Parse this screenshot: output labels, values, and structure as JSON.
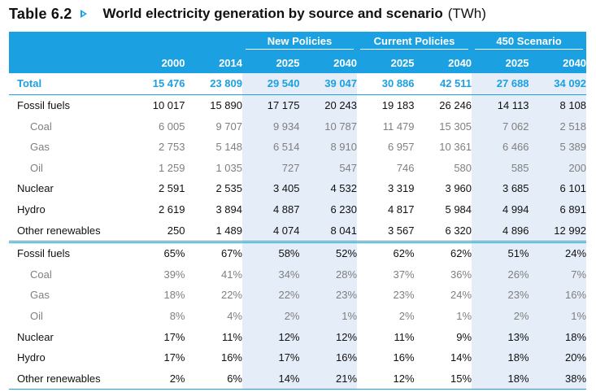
{
  "title": {
    "table_number": "Table 6.2",
    "text": "World electricity generation by source and scenario",
    "unit": "(TWh)"
  },
  "header": {
    "groups": [
      "New Policies",
      "Current Policies",
      "450 Scenario"
    ],
    "years": [
      "2000",
      "2014",
      "2025",
      "2040",
      "2025",
      "2040",
      "2025",
      "2040"
    ]
  },
  "rows": [
    {
      "label": "Total",
      "values": [
        "15 476",
        "23 809",
        "29 540",
        "39 047",
        "30 886",
        "42 511",
        "27 688",
        "34 092"
      ]
    },
    {
      "label": "Fossil fuels",
      "values": [
        "10 017",
        "15 890",
        "17 175",
        "20 243",
        "19 183",
        "26 246",
        "14 113",
        "8 108"
      ]
    },
    {
      "label": "Coal",
      "values": [
        "6 005",
        "9 707",
        "9 934",
        "10 787",
        "11 479",
        "15 305",
        "7 062",
        "2 518"
      ]
    },
    {
      "label": "Gas",
      "values": [
        "2 753",
        "5 148",
        "6 514",
        "8 910",
        "6 957",
        "10 361",
        "6 466",
        "5 389"
      ]
    },
    {
      "label": "Oil",
      "values": [
        "1 259",
        "1 035",
        "727",
        "547",
        "746",
        "580",
        "585",
        "200"
      ]
    },
    {
      "label": "Nuclear",
      "values": [
        "2 591",
        "2 535",
        "3 405",
        "4 532",
        "3 319",
        "3 960",
        "3 685",
        "6 101"
      ]
    },
    {
      "label": "Hydro",
      "values": [
        "2 619",
        "3 894",
        "4 887",
        "6 230",
        "4 817",
        "5 984",
        "4 994",
        "6 891"
      ]
    },
    {
      "label": "Other renewables",
      "values": [
        "250",
        "1 489",
        "4 074",
        "8 041",
        "3 567",
        "6 320",
        "4 896",
        "12 992"
      ]
    },
    {
      "label": "Fossil fuels",
      "values": [
        "65%",
        "67%",
        "58%",
        "52%",
        "62%",
        "62%",
        "51%",
        "24%"
      ]
    },
    {
      "label": "Coal",
      "values": [
        "39%",
        "41%",
        "34%",
        "28%",
        "37%",
        "36%",
        "26%",
        "7%"
      ]
    },
    {
      "label": "Gas",
      "values": [
        "18%",
        "22%",
        "22%",
        "23%",
        "23%",
        "24%",
        "23%",
        "16%"
      ]
    },
    {
      "label": "Oil",
      "values": [
        "8%",
        "4%",
        "2%",
        "1%",
        "2%",
        "1%",
        "2%",
        "1%"
      ]
    },
    {
      "label": "Nuclear",
      "values": [
        "17%",
        "11%",
        "12%",
        "12%",
        "11%",
        "9%",
        "13%",
        "18%"
      ]
    },
    {
      "label": "Hydro",
      "values": [
        "17%",
        "16%",
        "17%",
        "16%",
        "16%",
        "14%",
        "18%",
        "20%"
      ]
    },
    {
      "label": "Other renewables",
      "values": [
        "2%",
        "6%",
        "14%",
        "21%",
        "12%",
        "15%",
        "18%",
        "38%"
      ]
    }
  ],
  "colors": {
    "accent": "#1ba1e2",
    "shade": "#e5edf8",
    "sub_text": "#7f7f7f"
  }
}
